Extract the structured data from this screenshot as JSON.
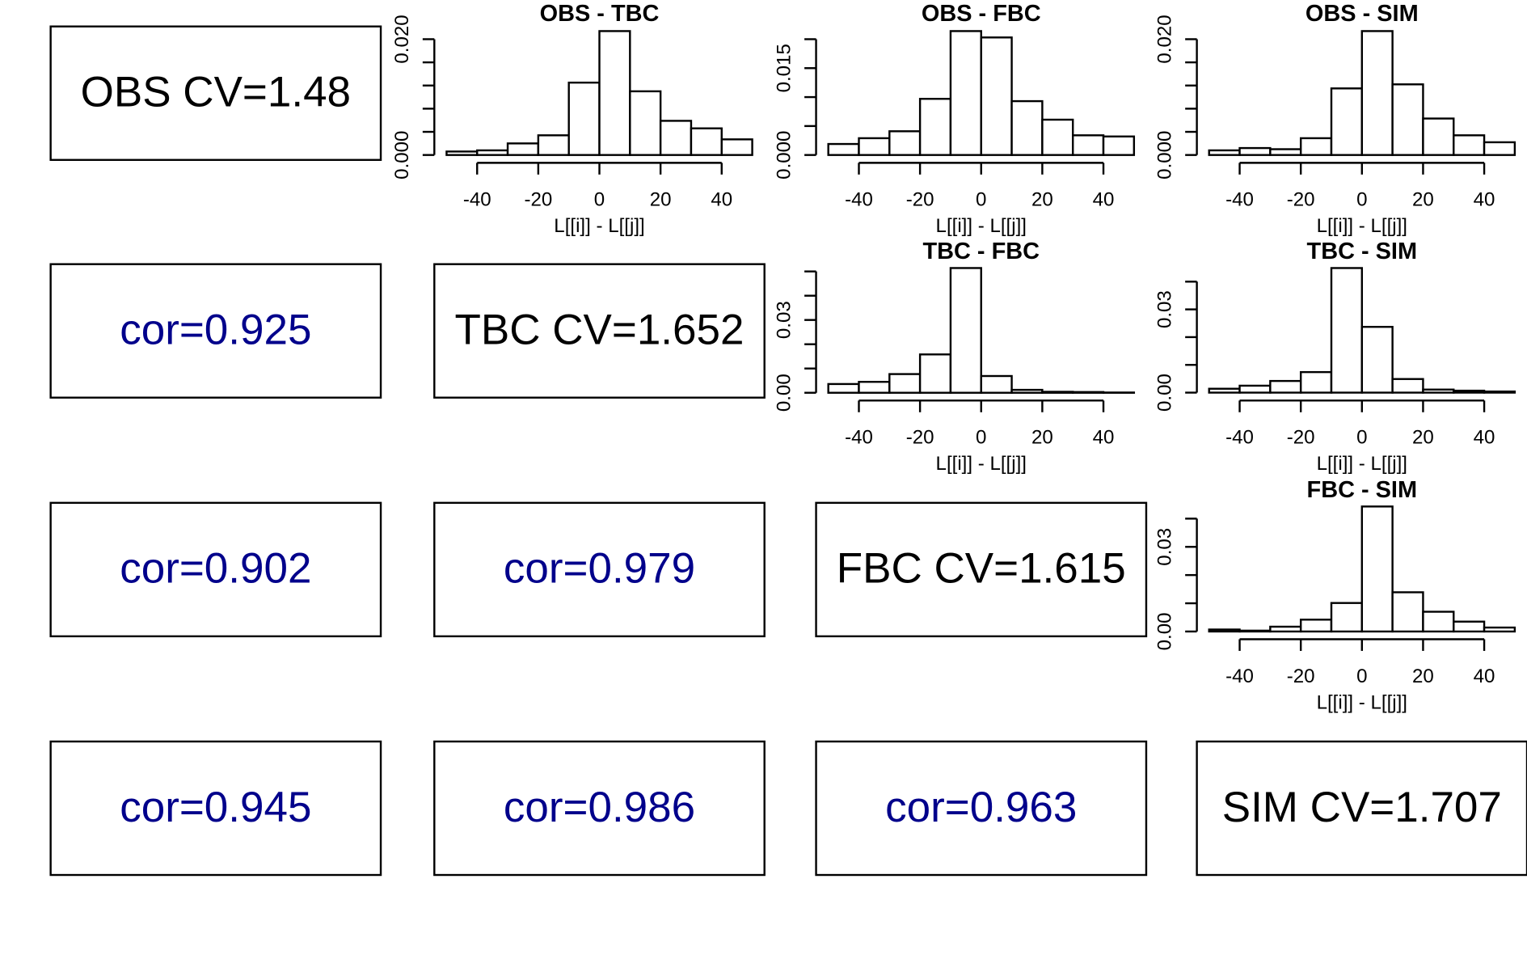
{
  "chart_data": [
    {
      "type": "histogram",
      "title": "OBS - TBC",
      "xlabel": "L[[i]] - L[[j]]",
      "bins": [
        -50,
        -40,
        -30,
        -20,
        -10,
        0,
        10,
        20,
        30,
        40,
        50
      ],
      "values": [
        0.0006,
        0.0008,
        0.002,
        0.0034,
        0.0125,
        0.0214,
        0.011,
        0.0059,
        0.0046,
        0.0027
      ],
      "xlim": [
        -54,
        54
      ],
      "xticks": [
        -40,
        -20,
        0,
        20,
        40
      ],
      "ylim": [
        -0.00085,
        0.0222
      ],
      "yticks": [
        {
          "value": 0,
          "label": "0.000"
        },
        {
          "value": 0.02,
          "label": "0.020"
        }
      ],
      "yminor_ticks": [
        0.004,
        0.008,
        0.012,
        0.016
      ],
      "color": "#ffffff"
    },
    {
      "type": "histogram",
      "title": "OBS - FBC",
      "xlabel": "L[[i]] - L[[j]]",
      "bins": [
        -50,
        -40,
        -30,
        -20,
        -10,
        0,
        10,
        20,
        30,
        40,
        50
      ],
      "values": [
        0.0019,
        0.0029,
        0.0041,
        0.0097,
        0.0214,
        0.0203,
        0.0093,
        0.0061,
        0.0034,
        0.0032
      ],
      "xlim": [
        -54,
        54
      ],
      "xticks": [
        -40,
        -20,
        0,
        20,
        40
      ],
      "ylim": [
        -0.00085,
        0.0222
      ],
      "yticks": [
        {
          "value": 0,
          "label": "0.000"
        },
        {
          "value": 0.015,
          "label": "0.015"
        }
      ],
      "yminor_ticks": [
        0.005,
        0.01,
        0.02
      ],
      "color": "#ffffff"
    },
    {
      "type": "histogram",
      "title": "OBS - SIM",
      "xlabel": "L[[i]] - L[[j]]",
      "bins": [
        -50,
        -40,
        -30,
        -20,
        -10,
        0,
        10,
        20,
        30,
        40,
        50
      ],
      "values": [
        0.0008,
        0.0012,
        0.001,
        0.0029,
        0.0115,
        0.0214,
        0.0122,
        0.0063,
        0.0034,
        0.0022
      ],
      "xlim": [
        -54,
        54
      ],
      "xticks": [
        -40,
        -20,
        0,
        20,
        40
      ],
      "ylim": [
        -0.00085,
        0.0222
      ],
      "yticks": [
        {
          "value": 0,
          "label": "0.000"
        },
        {
          "value": 0.02,
          "label": "0.020"
        }
      ],
      "yminor_ticks": [
        0.004,
        0.008,
        0.012,
        0.016
      ],
      "color": "#ffffff"
    },
    {
      "type": "histogram",
      "title": "TBC - FBC",
      "xlabel": "L[[i]] - L[[j]]",
      "bins": [
        -50,
        -40,
        -30,
        -20,
        -10,
        0,
        10,
        20,
        30,
        40,
        50
      ],
      "values": [
        0.0036,
        0.0045,
        0.0077,
        0.0158,
        0.0514,
        0.0069,
        0.0012,
        0.0004,
        0.0003,
        0.0001
      ],
      "xlim": [
        -54,
        54
      ],
      "xticks": [
        -40,
        -20,
        0,
        20,
        40
      ],
      "ylim": [
        -0.002,
        0.053
      ],
      "yticks": [
        {
          "value": 0,
          "label": "0.00"
        },
        {
          "value": 0.03,
          "label": "0.03"
        }
      ],
      "yminor_ticks": [
        0.01,
        0.02,
        0.04,
        0.05
      ],
      "color": "#ffffff"
    },
    {
      "type": "histogram",
      "title": "TBC - SIM",
      "xlabel": "L[[i]] - L[[j]]",
      "bins": [
        -50,
        -40,
        -30,
        -20,
        -10,
        0,
        10,
        20,
        30,
        40,
        50
      ],
      "values": [
        0.0014,
        0.0025,
        0.0042,
        0.0074,
        0.0449,
        0.0237,
        0.0049,
        0.0011,
        0.0007,
        0.0004
      ],
      "xlim": [
        -54,
        54
      ],
      "xticks": [
        -40,
        -20,
        0,
        20,
        40
      ],
      "ylim": [
        -0.0018,
        0.0463
      ],
      "yticks": [
        {
          "value": 0,
          "label": "0.00"
        },
        {
          "value": 0.03,
          "label": "0.03"
        }
      ],
      "yminor_ticks": [
        0.01,
        0.02,
        0.04
      ],
      "color": "#ffffff"
    },
    {
      "type": "histogram",
      "title": "FBC - SIM",
      "xlabel": "L[[i]] - L[[j]]",
      "bins": [
        -50,
        -40,
        -30,
        -20,
        -10,
        0,
        10,
        20,
        30,
        40,
        50
      ],
      "values": [
        0.0007,
        0.0003,
        0.0017,
        0.0042,
        0.0101,
        0.0443,
        0.0139,
        0.007,
        0.0035,
        0.0014
      ],
      "xlim": [
        -54,
        54
      ],
      "xticks": [
        -40,
        -20,
        0,
        20,
        40
      ],
      "ylim": [
        -0.0017,
        0.0456
      ],
      "yticks": [
        {
          "value": 0,
          "label": "0.00"
        },
        {
          "value": 0.03,
          "label": "0.03"
        }
      ],
      "yminor_ticks": [
        0.01,
        0.02,
        0.04
      ],
      "color": "#ffffff"
    }
  ],
  "diagonal": [
    "OBS CV=1.48",
    "TBC CV=1.652",
    "FBC CV=1.615",
    "SIM CV=1.707"
  ],
  "correlations": [
    "cor=0.925",
    "cor=0.902",
    "cor=0.979",
    "cor=0.945",
    "cor=0.986",
    "cor=0.963"
  ],
  "correlation_color": "#00008b"
}
